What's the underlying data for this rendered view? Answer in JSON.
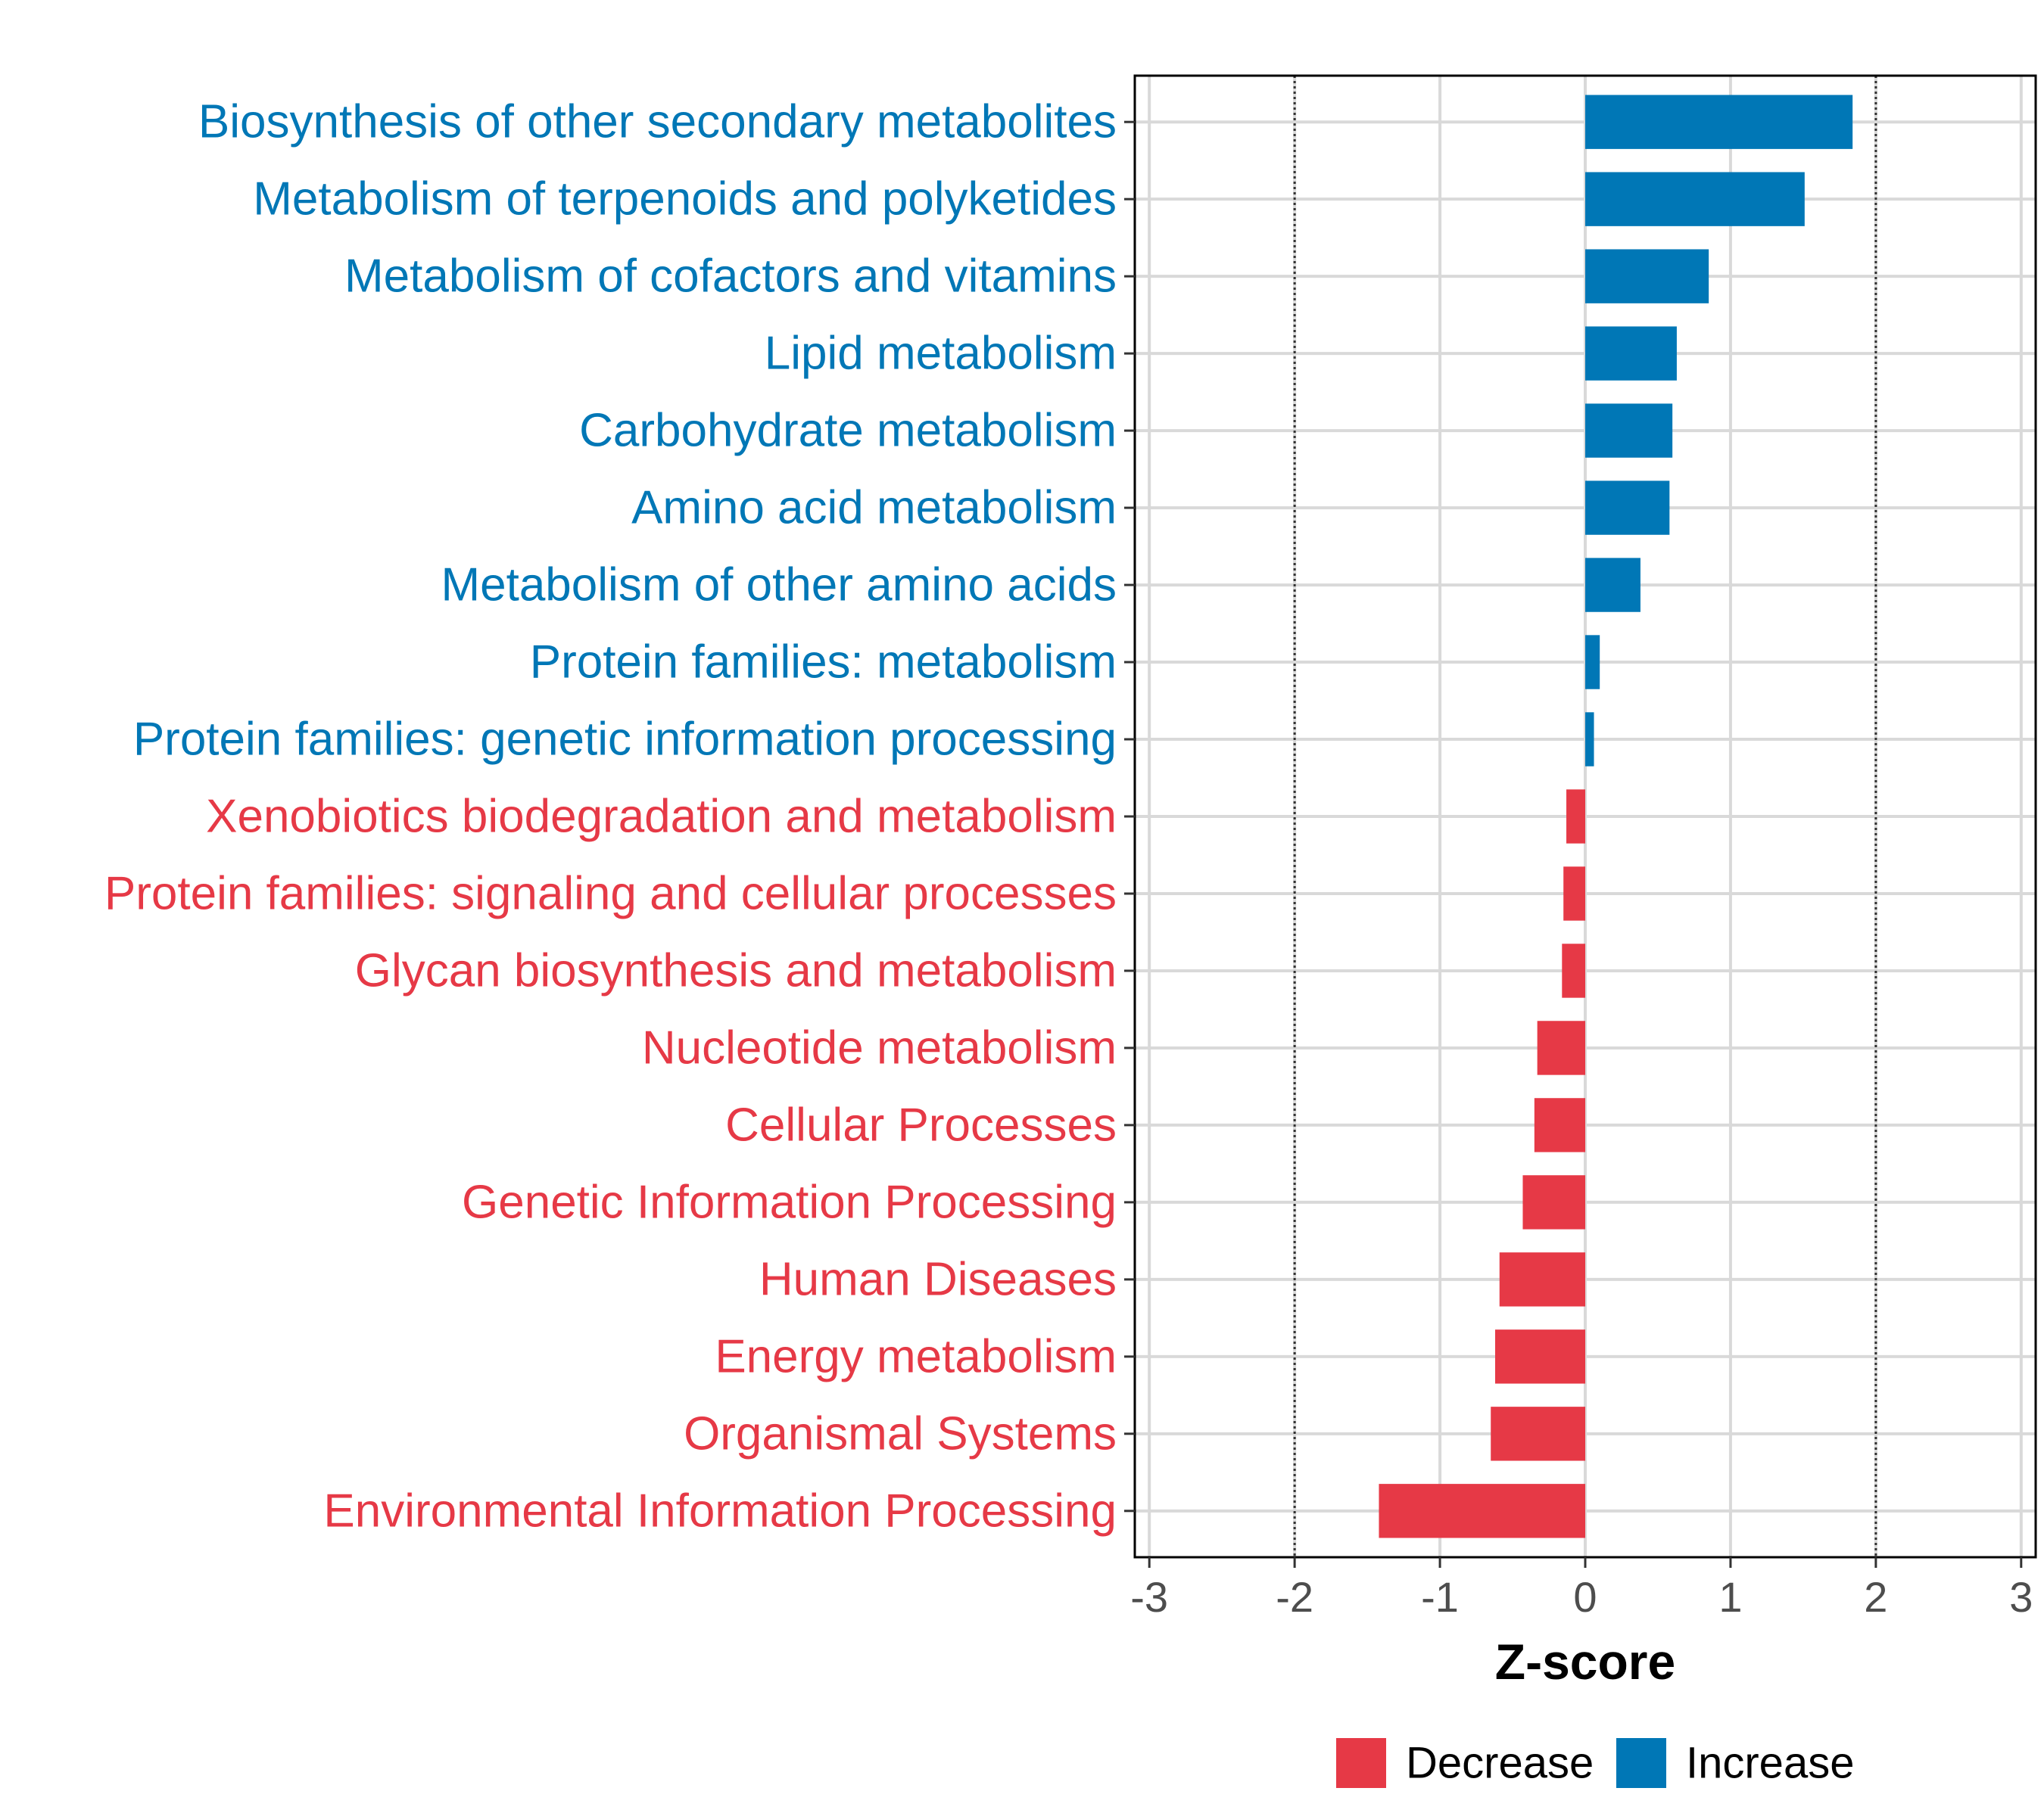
{
  "chart_data": {
    "type": "bar",
    "orientation": "horizontal",
    "xlabel": "Z-score",
    "ylabel": "",
    "xlim": [
      -3.1,
      3.1
    ],
    "xticks": [
      -3,
      -2,
      -1,
      0,
      1,
      2,
      3
    ],
    "xtick_labels": [
      "-3",
      "-2",
      "-1",
      "0",
      "1",
      "2",
      "3"
    ],
    "reference_lines": [
      -2,
      2
    ],
    "grid": true,
    "categories": [
      "Biosynthesis of other secondary metabolites",
      "Metabolism of terpenoids and polyketides",
      "Metabolism of cofactors and vitamins",
      "Lipid metabolism",
      "Carbohydrate metabolism",
      "Amino acid metabolism",
      "Metabolism of other amino acids",
      "Protein families: metabolism",
      "Protein families: genetic information processing",
      "Xenobiotics biodegradation and metabolism",
      "Protein families: signaling and cellular processes",
      "Glycan biosynthesis and metabolism",
      "Nucleotide metabolism",
      "Cellular Processes",
      "Genetic Information Processing",
      "Human Diseases",
      "Energy metabolism",
      "Organismal Systems",
      "Environmental Information Processing"
    ],
    "values": [
      1.84,
      1.51,
      0.85,
      0.63,
      0.6,
      0.58,
      0.38,
      0.1,
      0.06,
      -0.13,
      -0.15,
      -0.16,
      -0.33,
      -0.35,
      -0.43,
      -0.59,
      -0.62,
      -0.65,
      -1.42
    ],
    "groups": [
      "Increase",
      "Increase",
      "Increase",
      "Increase",
      "Increase",
      "Increase",
      "Increase",
      "Increase",
      "Increase",
      "Decrease",
      "Decrease",
      "Decrease",
      "Decrease",
      "Decrease",
      "Decrease",
      "Decrease",
      "Decrease",
      "Decrease",
      "Decrease"
    ],
    "legend": {
      "placement": "bottom",
      "entries": [
        {
          "label": "Decrease",
          "color": "#E63946"
        },
        {
          "label": "Increase",
          "color": "#0077B6"
        }
      ]
    }
  }
}
